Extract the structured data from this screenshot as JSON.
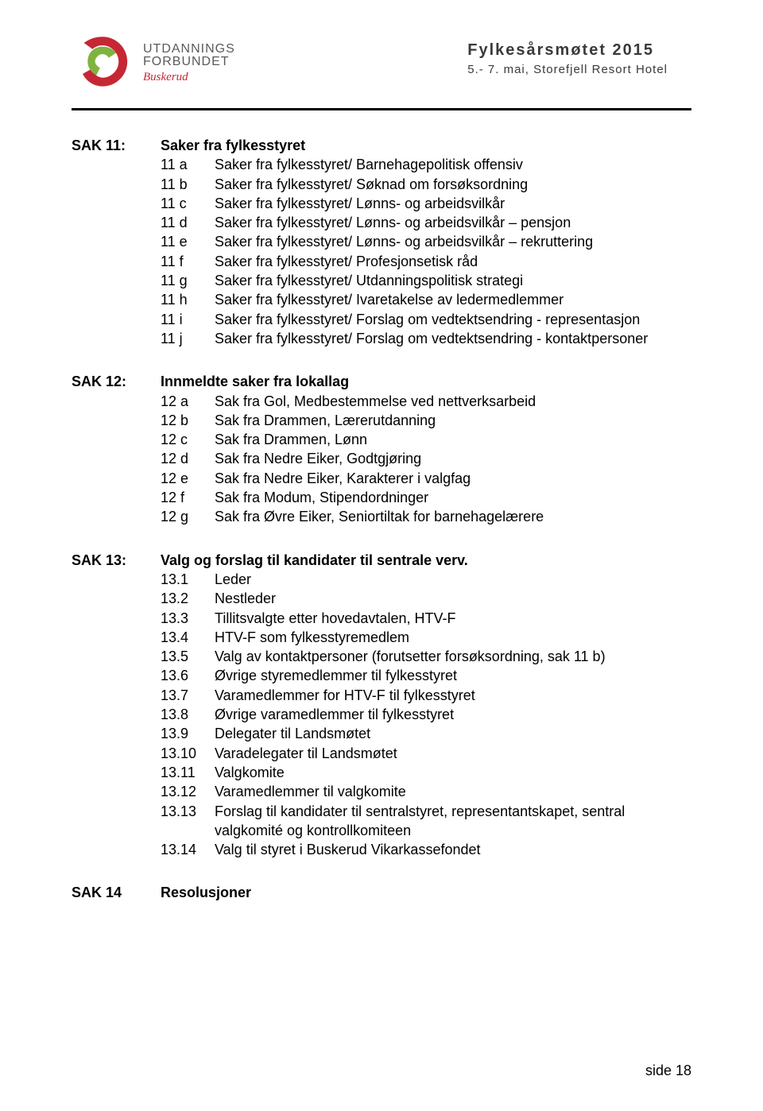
{
  "header": {
    "logo": {
      "line1": "UTDANNINGS",
      "line2": "FORBUNDET",
      "line3": "Buskerud",
      "outer_color": "#c62734",
      "inner_color": "#7fb341"
    },
    "meeting_title": "Fylkesårsmøtet 2015",
    "meeting_sub": "5.- 7. mai, Storefjell Resort Hotel"
  },
  "sections": [
    {
      "sak": "SAK 11:",
      "title": "Saker fra fylkesstyret",
      "items": [
        {
          "k": "11 a",
          "t": "Saker fra fylkesstyret/ Barnehagepolitisk offensiv"
        },
        {
          "k": "11 b",
          "t": "Saker fra fylkesstyret/ Søknad om forsøksordning"
        },
        {
          "k": "11 c",
          "t": "Saker fra fylkesstyret/ Lønns- og arbeidsvilkår"
        },
        {
          "k": "11 d",
          "t": "Saker fra fylkesstyret/ Lønns- og arbeidsvilkår – pensjon"
        },
        {
          "k": "11 e",
          "t": "Saker fra fylkesstyret/ Lønns- og arbeidsvilkår – rekruttering"
        },
        {
          "k": "11 f",
          "t": "Saker fra fylkesstyret/ Profesjonsetisk råd"
        },
        {
          "k": "11 g",
          "t": "Saker fra fylkesstyret/ Utdanningspolitisk strategi"
        },
        {
          "k": "11 h",
          "t": "Saker fra fylkesstyret/ Ivaretakelse av ledermedlemmer"
        },
        {
          "k": "11 i",
          "t": "Saker fra fylkesstyret/ Forslag om vedtektsendring - representasjon"
        },
        {
          "k": "11 j",
          "t": "Saker fra fylkesstyret/ Forslag om vedtektsendring - kontaktpersoner"
        }
      ]
    },
    {
      "sak": "SAK 12:",
      "title": "Innmeldte saker fra lokallag",
      "items": [
        {
          "k": "12 a",
          "t": "Sak fra Gol, Medbestemmelse ved nettverksarbeid"
        },
        {
          "k": "12 b",
          "t": "Sak fra Drammen, Lærerutdanning"
        },
        {
          "k": "12 c",
          "t": "Sak fra Drammen, Lønn"
        },
        {
          "k": "12 d",
          "t": "Sak fra Nedre Eiker, Godtgjøring"
        },
        {
          "k": "12 e",
          "t": "Sak fra Nedre Eiker, Karakterer i valgfag"
        },
        {
          "k": "12 f",
          "t": "Sak fra Modum, Stipendordninger"
        },
        {
          "k": "12 g",
          "t": "Sak fra Øvre Eiker, Seniortiltak for barnehagelærere"
        }
      ]
    },
    {
      "sak": "SAK 13:",
      "title": "Valg og forslag til kandidater til sentrale verv.",
      "items": [
        {
          "k": "13.1",
          "t": "Leder"
        },
        {
          "k": "13.2",
          "t": "Nestleder"
        },
        {
          "k": "13.3",
          "t": "Tillitsvalgte etter hovedavtalen, HTV-F"
        },
        {
          "k": "13.4",
          "t": "HTV-F som fylkesstyremedlem"
        },
        {
          "k": "13.5",
          "t": "Valg av kontaktpersoner (forutsetter forsøksordning, sak 11 b)"
        },
        {
          "k": "13.6",
          "t": "Øvrige styremedlemmer til fylkesstyret"
        },
        {
          "k": "13.7",
          "t": "Varamedlemmer for HTV-F til fylkesstyret"
        },
        {
          "k": "13.8",
          "t": "Øvrige varamedlemmer til fylkesstyret"
        },
        {
          "k": "13.9",
          "t": "Delegater til Landsmøtet"
        },
        {
          "k": "13.10",
          "t": "Varadelegater til Landsmøtet"
        },
        {
          "k": "13.11",
          "t": "Valgkomite"
        },
        {
          "k": "13.12",
          "t": "Varamedlemmer til valgkomite"
        },
        {
          "k": "13.13",
          "t": " Forslag til kandidater til sentralstyret, representantskapet, sentral valgkomité og kontrollkomiteen",
          "wrap": true
        },
        {
          "k": "13.14",
          "t": "Valg til styret i Buskerud Vikarkassefondet"
        }
      ]
    },
    {
      "sak": "SAK 14",
      "title": "Resolusjoner",
      "items": []
    }
  ],
  "footer": "side 18"
}
